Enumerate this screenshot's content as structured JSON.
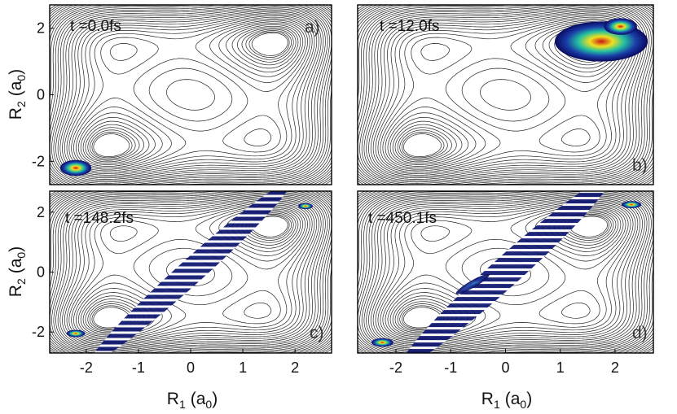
{
  "chart_data": [
    {
      "type": "heatmap",
      "panel": "a)",
      "time_label": "t =0.0fs",
      "xlabel": "",
      "ylabel_main": "R",
      "ylabel_sub": "2",
      "ylabel_unit": "(a",
      "ylabel_unit_sub": "0",
      "xlim": [
        -2.7,
        2.7
      ],
      "ylim": [
        -2.7,
        2.7
      ],
      "xticks": [],
      "yticks": [
        -2,
        0,
        2
      ],
      "blobs": [
        {
          "x": -2.2,
          "y": -2.2,
          "rx": 0.3,
          "ry": 0.24,
          "angle": 0,
          "intensity": 1.0
        }
      ]
    },
    {
      "type": "heatmap",
      "panel": "b)",
      "time_label": "t =12.0fs",
      "xlabel": "",
      "xlim": [
        -2.7,
        2.7
      ],
      "ylim": [
        -2.7,
        2.7
      ],
      "xticks": [],
      "yticks": [],
      "blobs": [
        {
          "x": 1.75,
          "y": 1.6,
          "rx": 0.85,
          "ry": 0.6,
          "angle": 0,
          "intensity": 0.55
        },
        {
          "x": 2.1,
          "y": 2.05,
          "rx": 0.3,
          "ry": 0.25,
          "angle": 0,
          "intensity": 1.0
        }
      ]
    },
    {
      "type": "heatmap",
      "panel": "c)",
      "time_label": "t =148.2fs",
      "xlabel_main": "R",
      "xlabel_sub": "1",
      "xlabel_unit": "(a",
      "xlabel_unit_sub": "0",
      "ylabel_main": "R",
      "ylabel_sub": "2",
      "ylabel_unit": "(a",
      "ylabel_unit_sub": "0",
      "xlim": [
        -2.7,
        2.7
      ],
      "ylim": [
        -2.7,
        2.7
      ],
      "xticks": [
        -2,
        -1,
        0,
        1,
        2
      ],
      "yticks": [
        -2,
        0,
        2
      ],
      "blobs": [
        {
          "x": 0.0,
          "y": 0.0,
          "rx": 2.55,
          "ry": 0.42,
          "angle": 42,
          "intensity": 0.15
        },
        {
          "x": -2.2,
          "y": -2.05,
          "rx": 0.18,
          "ry": 0.12,
          "angle": 0,
          "intensity": 0.9
        },
        {
          "x": 2.2,
          "y": 2.2,
          "rx": 0.14,
          "ry": 0.1,
          "angle": 0,
          "intensity": 0.6
        }
      ]
    },
    {
      "type": "heatmap",
      "panel": "d)",
      "time_label": "t =450.1fs",
      "xlabel_main": "R",
      "xlabel_sub": "1",
      "xlabel_unit": "(a",
      "xlabel_unit_sub": "0",
      "xlim": [
        -2.7,
        2.7
      ],
      "ylim": [
        -2.7,
        2.7
      ],
      "xticks": [
        -2,
        -1,
        0,
        1,
        2
      ],
      "yticks": [],
      "blobs": [
        {
          "x": 0.0,
          "y": 0.0,
          "rx": 2.55,
          "ry": 0.5,
          "angle": 42,
          "intensity": 0.12
        },
        {
          "x": -2.25,
          "y": -2.35,
          "rx": 0.2,
          "ry": 0.14,
          "angle": 0,
          "intensity": 0.95
        },
        {
          "x": 2.3,
          "y": 2.25,
          "rx": 0.18,
          "ry": 0.12,
          "angle": 0,
          "intensity": 0.7
        },
        {
          "x": -0.6,
          "y": -0.4,
          "rx": 0.35,
          "ry": 0.12,
          "angle": 30,
          "intensity": 0.35
        }
      ]
    }
  ],
  "colors": {
    "contour": "#222222",
    "low": "#0a0a6e",
    "mid": "#1aa0c8",
    "high": "#f0e020",
    "peak": "#c81414"
  }
}
